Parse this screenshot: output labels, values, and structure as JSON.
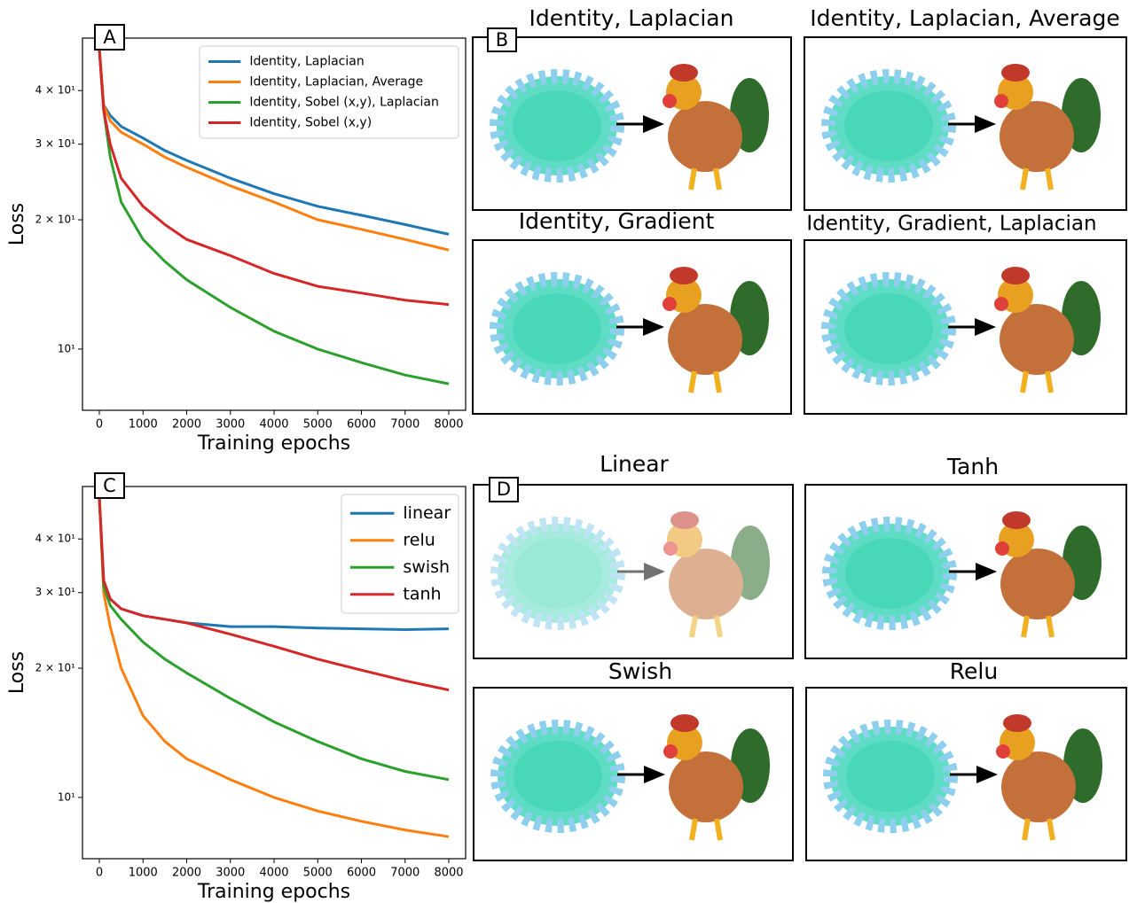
{
  "chart_data": [
    {
      "type": "line",
      "panel_label": "A",
      "xlabel": "Training epochs",
      "ylabel": "Loss",
      "log_scale": true,
      "legend_loc": "upper right",
      "x": [
        0,
        100,
        250,
        500,
        1000,
        1500,
        2000,
        3000,
        4000,
        5000,
        6000,
        7000,
        8000
      ],
      "xlim": [
        -386,
        8386
      ],
      "ylim": [
        7.2,
        53
      ],
      "xticks": [
        0,
        1000,
        2000,
        3000,
        4000,
        5000,
        6000,
        7000,
        8000
      ],
      "yticks": [
        {
          "value": 10,
          "label": "10¹"
        },
        {
          "value": 20,
          "label": "2 × 10¹"
        },
        {
          "value": 30,
          "label": "3 × 10¹"
        },
        {
          "value": 40,
          "label": "4 × 10¹"
        }
      ],
      "series": [
        {
          "name": "Identity, Laplacian",
          "color": "#1f77b4",
          "values": [
            50,
            37,
            35,
            33,
            31,
            29,
            27.5,
            25,
            23,
            21.5,
            20.5,
            19.5,
            18.5
          ]
        },
        {
          "name": "Identity, Laplacian, Average",
          "color": "#ff7f0e",
          "values": [
            50,
            37,
            34,
            32,
            30,
            28,
            26.5,
            24,
            22,
            20,
            19,
            18,
            17
          ]
        },
        {
          "name": "Identity, Sobel (x,y), Laplacian",
          "color": "#2ca02c",
          "values": [
            50,
            36,
            28,
            22,
            18,
            16,
            14.5,
            12.5,
            11,
            10,
            9.3,
            8.7,
            8.3
          ]
        },
        {
          "name": "Identity, Sobel (x,y)",
          "color": "#d62728",
          "values": [
            50,
            36,
            30,
            25,
            21.5,
            19.5,
            18,
            16.5,
            15,
            14,
            13.5,
            13,
            12.7
          ]
        }
      ]
    },
    {
      "type": "line",
      "panel_label": "C",
      "xlabel": "Training epochs",
      "ylabel": "Loss",
      "log_scale": true,
      "legend_loc": "upper right",
      "x": [
        0,
        100,
        250,
        500,
        1000,
        1500,
        2000,
        3000,
        4000,
        5000,
        6000,
        7000,
        8000
      ],
      "xlim": [
        -386,
        8386
      ],
      "ylim": [
        7.2,
        53
      ],
      "xticks": [
        0,
        1000,
        2000,
        3000,
        4000,
        5000,
        6000,
        7000,
        8000
      ],
      "yticks": [
        {
          "value": 10,
          "label": "10¹"
        },
        {
          "value": 20,
          "label": "2 × 10¹"
        },
        {
          "value": 30,
          "label": "3 × 10¹"
        },
        {
          "value": 40,
          "label": "4 × 10¹"
        }
      ],
      "series": [
        {
          "name": "linear",
          "color": "#1f77b4",
          "values": [
            50,
            32,
            29,
            27.5,
            26.5,
            26,
            25.5,
            25,
            25,
            24.8,
            24.7,
            24.6,
            24.7
          ]
        },
        {
          "name": "relu",
          "color": "#ff7f0e",
          "values": [
            50,
            30,
            25,
            20,
            15.5,
            13.5,
            12.3,
            11,
            10,
            9.3,
            8.8,
            8.4,
            8.1
          ]
        },
        {
          "name": "swish",
          "color": "#2ca02c",
          "values": [
            50,
            31,
            28,
            26,
            23,
            21,
            19.5,
            17,
            15,
            13.5,
            12.3,
            11.5,
            11
          ]
        },
        {
          "name": "tanh",
          "color": "#d62728",
          "values": [
            50,
            32,
            29,
            27.5,
            26.5,
            26,
            25.5,
            24,
            22.5,
            21,
            19.8,
            18.7,
            17.8
          ]
        }
      ]
    }
  ],
  "image_panels": [
    {
      "label": "B",
      "titles": [
        "Identity, Laplacian",
        "Identity, Laplacian, Average",
        "Identity, Gradient",
        "Identity, Gradient, Laplacian"
      ]
    },
    {
      "label": "D",
      "titles": [
        "Linear",
        "Tanh",
        "Swish",
        "Relu"
      ]
    }
  ]
}
